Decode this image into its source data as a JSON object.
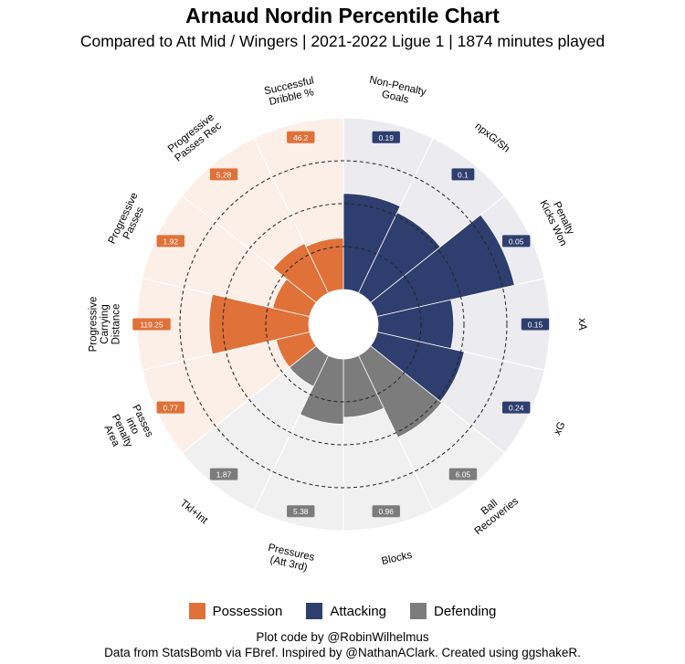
{
  "header": {
    "title": "Arnaud Nordin Percentile Chart",
    "subtitle": "Compared to Att Mid / Wingers  | 2021-2022 Ligue 1  | 1874 minutes played"
  },
  "legend": [
    {
      "label": "Possession",
      "color": "#e07139"
    },
    {
      "label": "Attacking",
      "color": "#2e3e6e"
    },
    {
      "label": "Defending",
      "color": "#7c7c7c"
    }
  ],
  "colors": {
    "Possession": "#e07139",
    "Attacking": "#2e3e6e",
    "Defending": "#7c7c7c",
    "Possession_bg": "#fcefe8",
    "Attacking_bg": "#ebebf0",
    "Defending_bg": "#f0f0f0",
    "label_text": "#ffffff",
    "ring": "#222222"
  },
  "chart_data": {
    "type": "polar-bar",
    "title": "Arnaud Nordin Percentile Chart",
    "value_range": [
      0,
      100
    ],
    "reference_rings": [
      25,
      50,
      75
    ],
    "metrics": [
      {
        "label": "Non-Penalty Goals",
        "lines": [
          "Non-Penalty",
          "Goals"
        ],
        "group": "Attacking",
        "percentile": 56,
        "value": "0.19"
      },
      {
        "label": "npxG/Sh",
        "lines": [
          "npxG/Sh"
        ],
        "group": "Attacking",
        "percentile": 52,
        "value": "0.1"
      },
      {
        "label": "Penalty Kicks Won",
        "lines": [
          "Penalty",
          "Kicks Won"
        ],
        "group": "Attacking",
        "percentile": 82,
        "value": "0.05"
      },
      {
        "label": "xA",
        "lines": [
          "xA"
        ],
        "group": "Attacking",
        "percentile": 44,
        "value": "0.15"
      },
      {
        "label": "xG",
        "lines": [
          "xG"
        ],
        "group": "Attacking",
        "percentile": 52,
        "value": "0.24"
      },
      {
        "label": "Ball Recoveries",
        "lines": [
          "Ball",
          "Recoveries"
        ],
        "group": "Defending",
        "percentile": 53,
        "value": "6.05"
      },
      {
        "label": "Blocks",
        "lines": [
          "Blocks"
        ],
        "group": "Defending",
        "percentile": 34,
        "value": "0.96"
      },
      {
        "label": "Pressures (Att 3rd)",
        "lines": [
          "Pressures",
          "(Att 3rd)"
        ],
        "group": "Defending",
        "percentile": 38,
        "value": "5.38"
      },
      {
        "label": "Tkl+Int",
        "lines": [
          "Tkl+Int"
        ],
        "group": "Defending",
        "percentile": 20,
        "value": "1.87"
      },
      {
        "label": "Passes into Penalty Area",
        "lines": [
          "Passes",
          "into",
          "Penalty",
          "Area"
        ],
        "group": "Possession",
        "percentile": 20,
        "value": "0.77"
      },
      {
        "label": "Progressive Carrying Distance",
        "lines": [
          "Progressive",
          "Carrying",
          "Distance"
        ],
        "group": "Possession",
        "percentile": 58,
        "value": "119.25"
      },
      {
        "label": "Progressive Passes",
        "lines": [
          "Progressive",
          "Passes"
        ],
        "group": "Possession",
        "percentile": 22,
        "value": "1.92"
      },
      {
        "label": "Progressive Passes Rec",
        "lines": [
          "Progressive",
          "Passes Rec"
        ],
        "group": "Possession",
        "percentile": 32,
        "value": "5.28"
      },
      {
        "label": "Successful Dribble %",
        "lines": [
          "Successful",
          "Dribble %"
        ],
        "group": "Possession",
        "percentile": 30,
        "value": "46.2"
      }
    ]
  },
  "credits": {
    "line1": "Plot code by @RobinWilhelmus",
    "line2": "Data from StatsBomb via FBref. Inspired by @NathanAClark. Created using ggshakeR."
  }
}
